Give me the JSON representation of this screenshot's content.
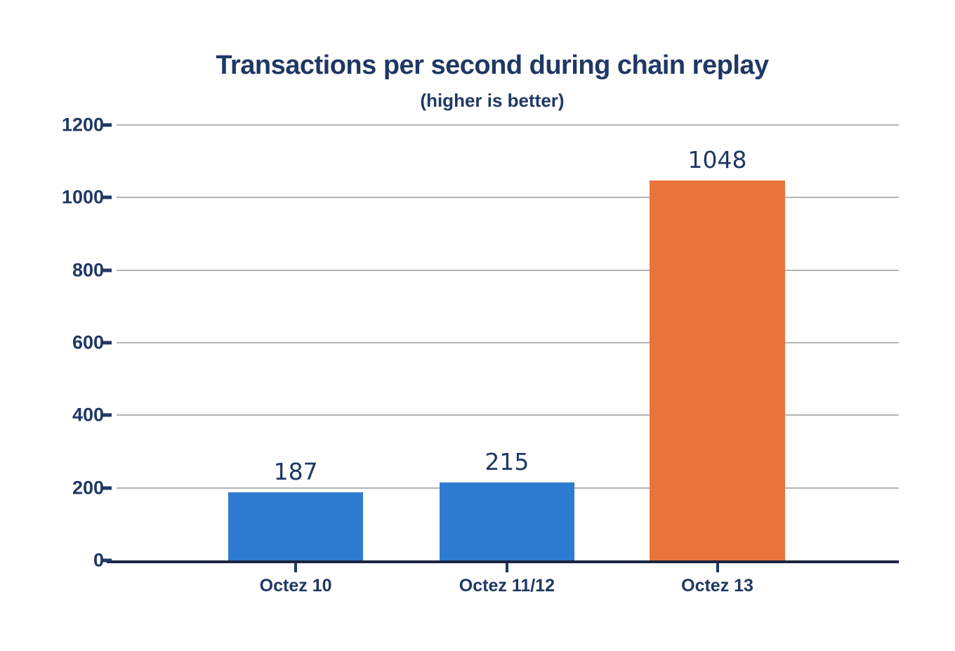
{
  "chart_data": {
    "type": "bar",
    "title": "Transactions per second during chain replay",
    "subtitle": "(higher is better)",
    "categories": [
      "Octez 10",
      "Octez 11/12",
      "Octez 13"
    ],
    "values": [
      187,
      215,
      1048
    ],
    "value_labels": [
      "187",
      "215",
      "1048"
    ],
    "bar_colors": [
      "#2E7CD1",
      "#2E7CD1",
      "#E8743C"
    ],
    "xlabel": "",
    "ylabel": "",
    "ylim": [
      0,
      1200
    ],
    "yticks": [
      0,
      200,
      400,
      600,
      800,
      1000,
      1200
    ],
    "grid": "horizontal",
    "legend": "none",
    "layout": {
      "bar_centers_frac": [
        0.229,
        0.499,
        0.768
      ],
      "bar_width_frac": 0.173
    }
  },
  "colors": {
    "text_navy": "#1F3864",
    "bar_blue": "#2E7CD1",
    "bar_orange": "#E8743C",
    "gridline_gray": "#B4B4B4",
    "axis_line": "#1B2540",
    "plot_background": "#FFFFFF",
    "page_background": "#FFFFFF"
  }
}
